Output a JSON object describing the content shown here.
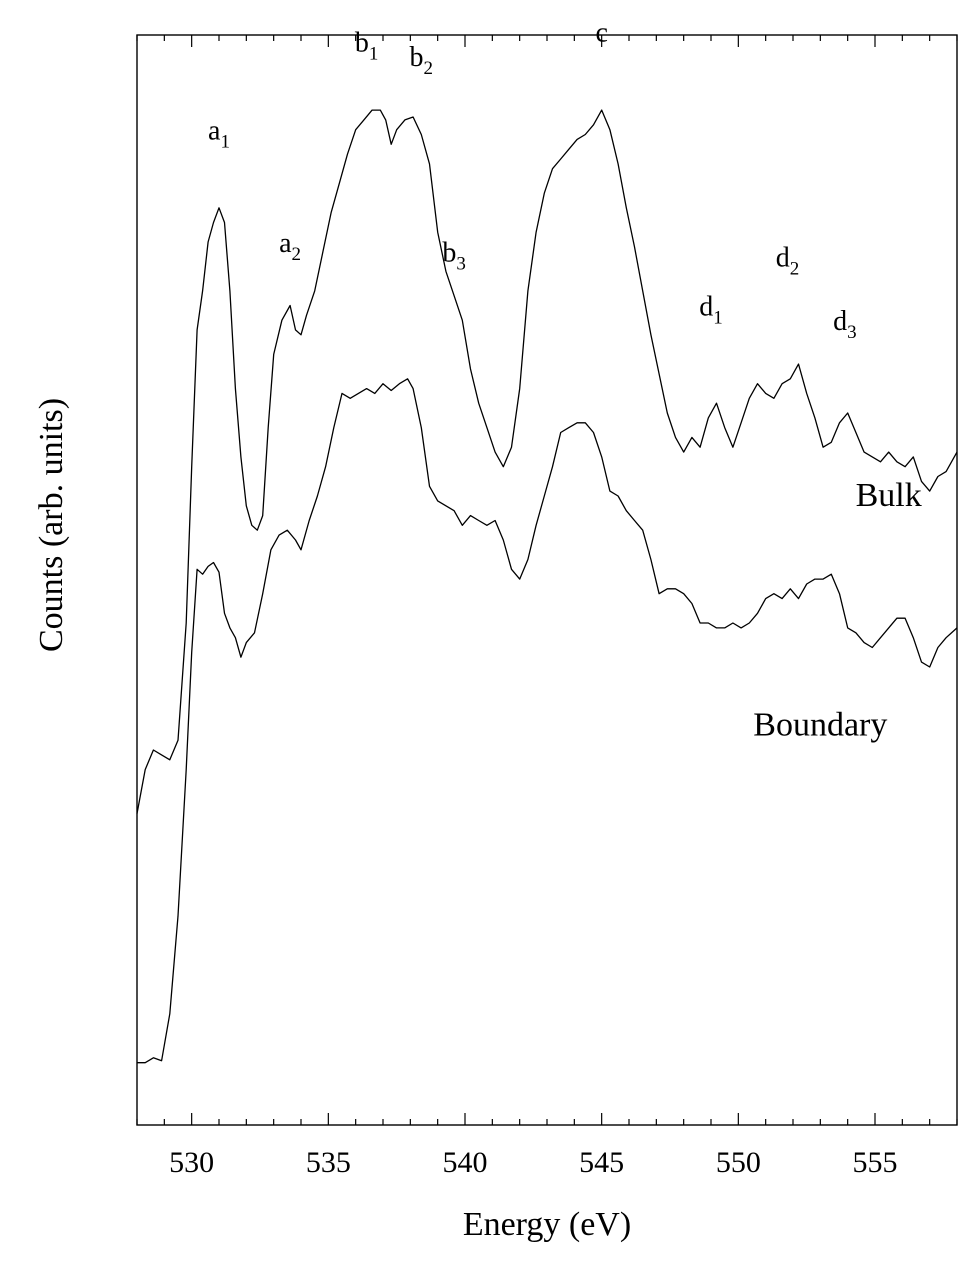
{
  "chart_data": {
    "type": "line",
    "xlabel": "Energy (eV)",
    "ylabel": "Counts (arb. units)",
    "xlim": [
      528,
      558
    ],
    "ylim": [
      0,
      100
    ],
    "xticks": [
      530,
      535,
      540,
      545,
      550,
      555
    ],
    "yticks_labeled": false,
    "grid": false,
    "series": [
      {
        "name": "Bulk",
        "x": [
          528.0,
          528.3,
          528.6,
          528.9,
          529.2,
          529.5,
          529.8,
          530.0,
          530.2,
          530.4,
          530.6,
          530.8,
          531.0,
          531.2,
          531.4,
          531.6,
          531.8,
          532.0,
          532.2,
          532.4,
          532.6,
          532.8,
          533.0,
          533.3,
          533.6,
          533.8,
          534.0,
          534.2,
          534.5,
          534.8,
          535.1,
          535.4,
          535.7,
          536.0,
          536.3,
          536.6,
          536.9,
          537.1,
          537.3,
          537.5,
          537.8,
          538.1,
          538.4,
          538.7,
          539.0,
          539.3,
          539.6,
          539.9,
          540.2,
          540.5,
          540.8,
          541.1,
          541.4,
          541.7,
          542.0,
          542.3,
          542.6,
          542.9,
          543.2,
          543.5,
          543.8,
          544.1,
          544.4,
          544.7,
          545.0,
          545.3,
          545.6,
          545.9,
          546.2,
          546.5,
          546.8,
          547.1,
          547.4,
          547.7,
          548.0,
          548.3,
          548.6,
          548.9,
          549.2,
          549.5,
          549.8,
          550.1,
          550.4,
          550.7,
          551.0,
          551.3,
          551.6,
          551.9,
          552.2,
          552.5,
          552.8,
          553.1,
          553.4,
          553.7,
          554.0,
          554.3,
          554.6,
          554.9,
          555.2,
          555.5,
          555.8,
          556.1,
          556.4,
          556.7,
          557.0,
          557.3,
          557.6,
          558.0
        ],
        "y": [
          28.5,
          33.0,
          35.0,
          34.5,
          34.0,
          36.0,
          48.0,
          64.0,
          78.0,
          82.0,
          87.0,
          89.0,
          90.5,
          89.0,
          82.0,
          72.0,
          65.0,
          60.0,
          58.0,
          57.5,
          59.0,
          68.0,
          75.5,
          79.0,
          80.5,
          78.0,
          77.5,
          79.5,
          82.0,
          86.0,
          90.0,
          93.0,
          96.0,
          98.5,
          99.5,
          100.5,
          100.5,
          99.5,
          97.0,
          98.5,
          99.5,
          99.8,
          98.0,
          95.0,
          88.0,
          84.0,
          81.5,
          79.0,
          74.0,
          70.5,
          68.0,
          65.5,
          64.0,
          66.0,
          72.0,
          82.0,
          88.0,
          92.0,
          94.5,
          95.5,
          96.5,
          97.5,
          98.0,
          99.0,
          100.5,
          98.5,
          95.0,
          90.5,
          86.5,
          82.0,
          77.5,
          73.5,
          69.5,
          67.0,
          65.5,
          67.0,
          66.0,
          69.0,
          70.5,
          68.0,
          66.0,
          68.5,
          71.0,
          72.5,
          71.5,
          71.0,
          72.5,
          73.0,
          74.5,
          71.5,
          69.0,
          66.0,
          66.5,
          68.5,
          69.5,
          67.5,
          65.5,
          65.0,
          64.5,
          65.5,
          64.5,
          64.0,
          65.0,
          62.5,
          61.5,
          63.0,
          63.5,
          65.5
        ]
      },
      {
        "name": "Boundary",
        "x": [
          528.0,
          528.3,
          528.6,
          528.9,
          529.2,
          529.5,
          529.8,
          530.0,
          530.2,
          530.4,
          530.6,
          530.8,
          531.0,
          531.2,
          531.4,
          531.6,
          531.8,
          532.0,
          532.3,
          532.6,
          532.9,
          533.2,
          533.5,
          533.8,
          534.0,
          534.3,
          534.6,
          534.9,
          535.2,
          535.5,
          535.8,
          536.1,
          536.4,
          536.7,
          537.0,
          537.3,
          537.6,
          537.9,
          538.1,
          538.4,
          538.7,
          539.0,
          539.3,
          539.6,
          539.9,
          540.2,
          540.5,
          540.8,
          541.1,
          541.4,
          541.7,
          542.0,
          542.3,
          542.6,
          542.9,
          543.2,
          543.5,
          543.8,
          544.1,
          544.4,
          544.7,
          545.0,
          545.3,
          545.6,
          545.9,
          546.2,
          546.5,
          546.8,
          547.1,
          547.4,
          547.7,
          548.0,
          548.3,
          548.6,
          548.9,
          549.2,
          549.5,
          549.8,
          550.1,
          550.4,
          550.7,
          551.0,
          551.3,
          551.6,
          551.9,
          552.2,
          552.5,
          552.8,
          553.1,
          553.4,
          553.7,
          554.0,
          554.3,
          554.6,
          554.9,
          555.2,
          555.5,
          555.8,
          556.1,
          556.4,
          556.7,
          557.0,
          557.3,
          557.6,
          558.0
        ],
        "y": [
          3.0,
          3.0,
          3.5,
          3.2,
          8.0,
          18.0,
          33.0,
          45.0,
          53.5,
          53.0,
          53.8,
          54.2,
          53.2,
          49.0,
          47.5,
          46.5,
          44.5,
          46.0,
          47.0,
          51.0,
          55.5,
          57.0,
          57.5,
          56.5,
          55.5,
          58.5,
          61.0,
          64.0,
          68.0,
          71.5,
          71.0,
          71.5,
          72.0,
          71.5,
          72.5,
          71.8,
          72.5,
          73.0,
          72.0,
          68.0,
          62.0,
          60.5,
          60.0,
          59.5,
          58.0,
          59.0,
          58.5,
          58.0,
          58.5,
          56.5,
          53.5,
          52.5,
          54.5,
          58.0,
          61.0,
          64.0,
          67.5,
          68.0,
          68.5,
          68.5,
          67.5,
          65.0,
          61.5,
          61.0,
          59.5,
          58.5,
          57.5,
          54.5,
          51.0,
          51.5,
          51.5,
          51.0,
          50.0,
          48.0,
          48.0,
          47.5,
          47.5,
          48.0,
          47.5,
          48.0,
          49.0,
          50.5,
          51.0,
          50.5,
          51.5,
          50.5,
          52.0,
          52.5,
          52.5,
          53.0,
          51.0,
          47.5,
          47.0,
          46.0,
          45.5,
          46.5,
          47.5,
          48.5,
          48.5,
          46.5,
          44.0,
          43.5,
          45.5,
          46.5,
          47.5
        ]
      }
    ],
    "annotations": [
      {
        "base": "a",
        "sub": "1",
        "x": 531.0,
        "y": 97.5
      },
      {
        "base": "a",
        "sub": "2",
        "x": 533.6,
        "y": 86.0
      },
      {
        "base": "b",
        "sub": "1",
        "x": 536.4,
        "y": 106.5
      },
      {
        "base": "b",
        "sub": "2",
        "x": 538.4,
        "y": 105.0
      },
      {
        "base": "b",
        "sub": "3",
        "x": 539.6,
        "y": 85.0
      },
      {
        "base": "c",
        "sub": "",
        "x": 545.0,
        "y": 107.5
      },
      {
        "base": "d",
        "sub": "1",
        "x": 549.0,
        "y": 79.5
      },
      {
        "base": "d",
        "sub": "2",
        "x": 551.8,
        "y": 84.5
      },
      {
        "base": "d",
        "sub": "3",
        "x": 553.9,
        "y": 78.0
      }
    ],
    "series_labels": [
      {
        "text": "Bulk",
        "x": 555.5,
        "y": 60.0
      },
      {
        "text": "Boundary",
        "x": 553.0,
        "y": 36.5
      }
    ]
  }
}
